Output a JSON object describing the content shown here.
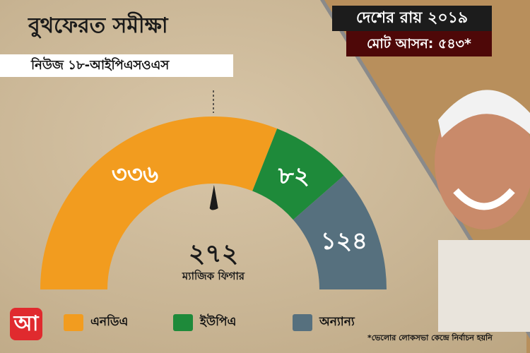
{
  "header": {
    "title": "বুথফেরত সমীক্ষা",
    "subtitle": "নিউজ ১৮-আইপিএসওএস",
    "year_label": "দেশের রায় ২০১৯",
    "total_seats_label": "মোট আসন: ৫৪৩*"
  },
  "logo": {
    "text": "আ",
    "color": "#e02a2e"
  },
  "chart_data": {
    "type": "pie",
    "style": "semicircle gauge",
    "series": [
      {
        "name": "এনডিএ",
        "value": 336,
        "label": "৩৩৬",
        "color": "#f29c1f"
      },
      {
        "name": "ইউপিএ",
        "value": 82,
        "label": "৮২",
        "color": "#1e8a3a"
      },
      {
        "name": "অন্যান্য",
        "value": 124,
        "label": "১২৪",
        "color": "#56707e"
      }
    ],
    "marker": {
      "value": 272,
      "label": "২৭২",
      "caption": "ম্যাজিক ফিগার"
    },
    "legend_position": "bottom"
  },
  "footnote": "*ভেলোর লোকসভা কেন্দ্রে নির্বাচন হয়নি"
}
